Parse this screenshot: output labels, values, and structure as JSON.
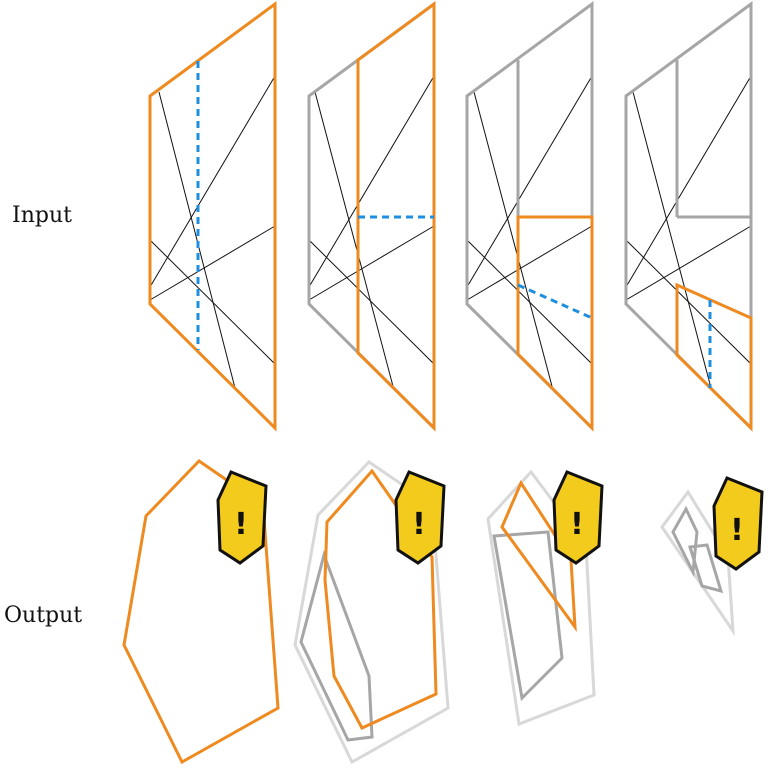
{
  "labels": {
    "input": "Input",
    "output": "Output"
  },
  "colors": {
    "active": "#EE8A1F",
    "inactive": "#A6A6A6",
    "faint": "#D8D8D8",
    "line": "#111111",
    "cut": "#1E8FE0",
    "warning_fill": "#F2CB1D",
    "warning_stroke": "#111111"
  },
  "warning_icon": {
    "icon": "warning-shield-icon",
    "symbol": "!"
  },
  "input_panels": [
    {
      "index": 1,
      "active_region": "whole-quad",
      "cut": "vertical"
    },
    {
      "index": 2,
      "active_region": "right-strip",
      "cut": "horizontal"
    },
    {
      "index": 3,
      "active_region": "lower-right-block",
      "cut": "diagonal"
    },
    {
      "index": 4,
      "active_region": "lower-right-corner",
      "cut": "vertical-short"
    }
  ],
  "output_panels": [
    {
      "index": 1,
      "polygons": [
        "active"
      ]
    },
    {
      "index": 2,
      "polygons": [
        "faint",
        "inactive",
        "active"
      ]
    },
    {
      "index": 3,
      "polygons": [
        "faint",
        "inactive",
        "active"
      ]
    },
    {
      "index": 4,
      "polygons": [
        "faint",
        "inactive",
        "inactive"
      ]
    }
  ]
}
